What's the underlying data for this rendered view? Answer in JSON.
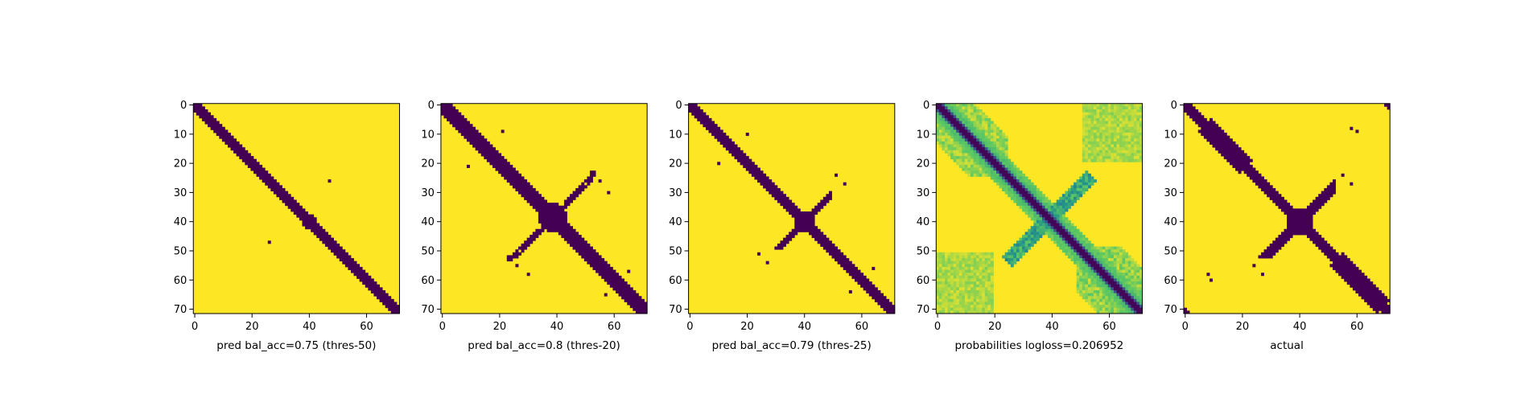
{
  "figure": {
    "colors": {
      "low": "#440154",
      "high": "#fde725",
      "background": "#ffffff"
    }
  },
  "chart_data": [
    {
      "type": "heatmap",
      "id": "p1",
      "xlabel": "pred bal_acc=0.75 (thres-50)",
      "size": 72,
      "xlim": [
        0,
        71
      ],
      "ylim": [
        71,
        0
      ],
      "xticks": [
        "0",
        "20",
        "40",
        "60"
      ],
      "yticks": [
        "0",
        "10",
        "20",
        "30",
        "40",
        "50",
        "60",
        "70"
      ],
      "colormap": "viridis",
      "values_range": [
        0,
        1
      ],
      "pattern": "binary contact map: 0 (dark) on main diagonal band i-2..i+2, crossing blob near (40,40); isolated points (48,26),(26,47)"
    },
    {
      "type": "heatmap",
      "id": "p2",
      "xlabel": "pred bal_acc=0.8 (thres-20)",
      "size": 72,
      "xlim": [
        0,
        71
      ],
      "ylim": [
        71,
        0
      ],
      "xticks": [
        "0",
        "20",
        "40",
        "60"
      ],
      "yticks": [
        "0",
        "10",
        "20",
        "30",
        "40",
        "50",
        "60",
        "70"
      ],
      "colormap": "viridis",
      "values_range": [
        0,
        1
      ],
      "pattern": "binary: wider diagonal band (|i-j|<=3), large cross/X blob centered (39,38) with anti-diagonal arms toward (53,24) and (24,52)"
    },
    {
      "type": "heatmap",
      "id": "p3",
      "xlabel": "pred bal_acc=0.79 (thres-25)",
      "size": 72,
      "xlim": [
        0,
        71
      ],
      "ylim": [
        71,
        0
      ],
      "xticks": [
        "0",
        "20",
        "40",
        "60"
      ],
      "yticks": [
        "0",
        "10",
        "20",
        "30",
        "40",
        "50",
        "60",
        "70"
      ],
      "colormap": "viridis",
      "values_range": [
        0,
        1
      ],
      "pattern": "binary: diagonal band, cross blob near (40,40) with short anti-diagonal arms"
    },
    {
      "type": "heatmap",
      "id": "p4",
      "xlabel": "probabilities logloss=0.206952",
      "size": 72,
      "xlim": [
        0,
        71
      ],
      "ylim": [
        71,
        0
      ],
      "xticks": [
        "0",
        "20",
        "40",
        "60"
      ],
      "yticks": [
        "0",
        "10",
        "20",
        "30",
        "40",
        "50",
        "60",
        "70"
      ],
      "colormap": "viridis",
      "values_range": [
        0,
        1
      ],
      "pattern": "continuous probability map: dark thin diagonal, green/teal haze along diagonal and along anti-diagonal arms, green patches near corners"
    },
    {
      "type": "heatmap",
      "id": "p5",
      "xlabel": "actual",
      "size": 72,
      "xlim": [
        0,
        71
      ],
      "ylim": [
        71,
        0
      ],
      "xticks": [
        "0",
        "20",
        "40",
        "60"
      ],
      "yticks": [
        "0",
        "10",
        "20",
        "30",
        "40",
        "50",
        "60",
        "70"
      ],
      "colormap": "viridis",
      "values_range": [
        0,
        1
      ],
      "pattern": "binary actual contact map: irregular diagonal band with lobes, X cross centered (40,40), isolated points and corner marks (0,71),(71,0)"
    }
  ]
}
